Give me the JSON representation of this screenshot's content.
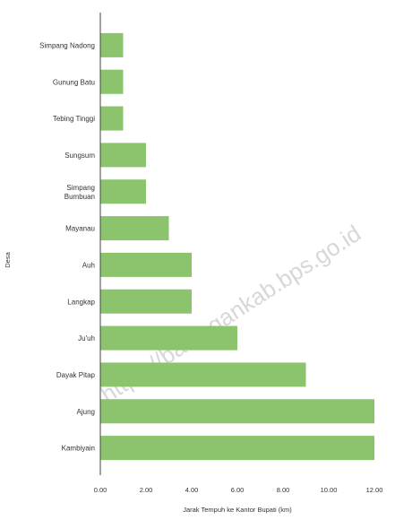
{
  "chart_data": {
    "type": "bar",
    "orientation": "horizontal",
    "categories": [
      "Simpang Nadong",
      "Gunung Batu",
      "Tebing Tinggi",
      "Sungsum",
      "Simpang Bumbuan",
      "Mayanau",
      "Auh",
      "Langkap",
      "Ju'uh",
      "Dayak Pitap",
      "Ajung",
      "Kambiyain"
    ],
    "category_lines": [
      [
        "Simpang Nadong"
      ],
      [
        "Gunung Batu"
      ],
      [
        "Tebing Tinggi"
      ],
      [
        "Sungsum"
      ],
      [
        "Simpang",
        "Bumbuan"
      ],
      [
        "Mayanau"
      ],
      [
        "Auh"
      ],
      [
        "Langkap"
      ],
      [
        "Ju'uh"
      ],
      [
        "Dayak Pitap"
      ],
      [
        "Ajung"
      ],
      [
        "Kambiyain"
      ]
    ],
    "values": [
      1,
      1,
      1,
      2,
      2,
      3,
      4,
      4,
      6,
      9,
      12,
      12
    ],
    "xlabel": "Jarak Tempuh ke Kantor Bupati (km)",
    "ylabel": "Desa",
    "xlim": [
      0,
      12
    ],
    "xticks": [
      "0.00",
      "2.00",
      "4.00",
      "6.00",
      "8.00",
      "10.00",
      "12.00"
    ],
    "bar_color": "#8cc46e",
    "grid": false,
    "legend": "none"
  },
  "watermark": "https://balangankab.bps.go.id"
}
